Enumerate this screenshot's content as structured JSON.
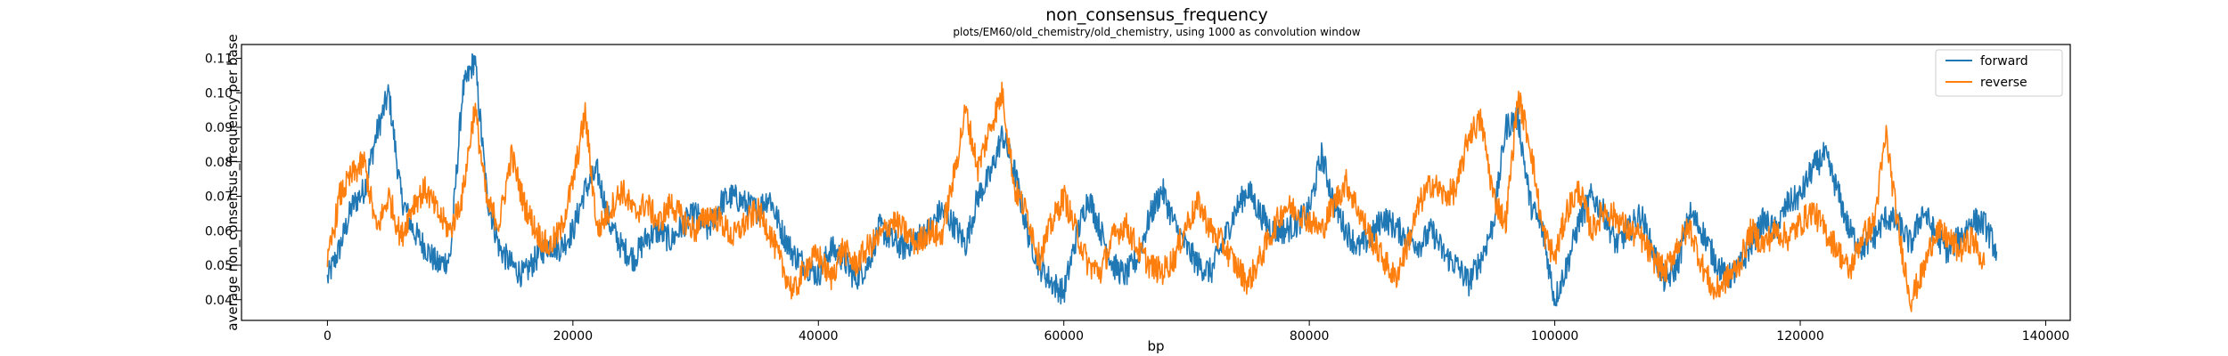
{
  "chart_data": {
    "type": "line",
    "title": "non_consensus_frequency",
    "subtitle": "plots/EM60/old_chemistry/old_chemistry, using 1000 as convolution window",
    "xlabel": "bp",
    "ylabel": "average non_consensus_frequency per base",
    "xlim": [
      -7000,
      142000
    ],
    "ylim": [
      0.034,
      0.114
    ],
    "xticks": [
      0,
      20000,
      40000,
      60000,
      80000,
      100000,
      120000,
      140000
    ],
    "yticks": [
      0.04,
      0.05,
      0.06,
      0.07,
      0.08,
      0.09,
      0.1,
      0.11
    ],
    "xtick_labels": [
      "0",
      "20000",
      "40000",
      "60000",
      "80000",
      "100000",
      "120000",
      "140000"
    ],
    "ytick_labels": [
      "0.04",
      "0.05",
      "0.06",
      "0.07",
      "0.08",
      "0.09",
      "0.10",
      "0.11"
    ],
    "grid": false,
    "legend_position": "top-right",
    "series": [
      {
        "name": "forward",
        "color": "#1f77b4",
        "x": [
          0,
          1000,
          2000,
          3000,
          4000,
          5000,
          6000,
          7000,
          8000,
          9000,
          10000,
          11000,
          12000,
          13000,
          14000,
          15000,
          16000,
          17000,
          18000,
          19000,
          20000,
          21000,
          22000,
          23000,
          24000,
          25000,
          26000,
          27000,
          28000,
          29000,
          30000,
          31000,
          32000,
          33000,
          34000,
          35000,
          36000,
          37000,
          38000,
          39000,
          40000,
          41000,
          42000,
          43000,
          44000,
          45000,
          46000,
          47000,
          48000,
          49000,
          50000,
          51000,
          52000,
          53000,
          54000,
          55000,
          56000,
          57000,
          58000,
          59000,
          60000,
          61000,
          62000,
          63000,
          64000,
          65000,
          66000,
          67000,
          68000,
          69000,
          70000,
          71000,
          72000,
          73000,
          74000,
          75000,
          76000,
          77000,
          78000,
          79000,
          80000,
          81000,
          82000,
          83000,
          84000,
          85000,
          86000,
          87000,
          88000,
          89000,
          90000,
          91000,
          92000,
          93000,
          94000,
          95000,
          96000,
          97000,
          98000,
          99000,
          100000,
          101000,
          102000,
          103000,
          104000,
          105000,
          106000,
          107000,
          108000,
          109000,
          110000,
          111000,
          112000,
          113000,
          114000,
          115000,
          116000,
          117000,
          118000,
          119000,
          120000,
          121000,
          122000,
          123000,
          124000,
          125000,
          126000,
          127000,
          128000,
          129000,
          130000,
          131000,
          132000,
          133000,
          134000,
          135000,
          136000
        ],
        "values": [
          0.046,
          0.055,
          0.067,
          0.072,
          0.088,
          0.1,
          0.07,
          0.06,
          0.055,
          0.05,
          0.052,
          0.1,
          0.11,
          0.07,
          0.055,
          0.05,
          0.047,
          0.052,
          0.056,
          0.055,
          0.06,
          0.072,
          0.077,
          0.062,
          0.055,
          0.052,
          0.058,
          0.06,
          0.057,
          0.062,
          0.065,
          0.06,
          0.068,
          0.07,
          0.068,
          0.066,
          0.07,
          0.06,
          0.053,
          0.05,
          0.047,
          0.055,
          0.052,
          0.046,
          0.05,
          0.061,
          0.057,
          0.055,
          0.058,
          0.06,
          0.066,
          0.062,
          0.056,
          0.07,
          0.076,
          0.088,
          0.077,
          0.06,
          0.05,
          0.045,
          0.042,
          0.058,
          0.07,
          0.06,
          0.05,
          0.047,
          0.052,
          0.064,
          0.072,
          0.062,
          0.055,
          0.05,
          0.048,
          0.057,
          0.066,
          0.072,
          0.065,
          0.06,
          0.06,
          0.062,
          0.066,
          0.082,
          0.068,
          0.06,
          0.055,
          0.058,
          0.064,
          0.061,
          0.058,
          0.056,
          0.06,
          0.053,
          0.05,
          0.045,
          0.052,
          0.062,
          0.09,
          0.093,
          0.068,
          0.06,
          0.04,
          0.05,
          0.063,
          0.07,
          0.065,
          0.056,
          0.06,
          0.065,
          0.054,
          0.045,
          0.05,
          0.065,
          0.06,
          0.052,
          0.046,
          0.049,
          0.056,
          0.063,
          0.06,
          0.068,
          0.07,
          0.078,
          0.082,
          0.072,
          0.06,
          0.055,
          0.058,
          0.064,
          0.062,
          0.056,
          0.066,
          0.059,
          0.054,
          0.058,
          0.063,
          0.062,
          0.054
        ]
      },
      {
        "name": "reverse",
        "color": "#ff7f0e",
        "x": [
          0,
          1000,
          2000,
          3000,
          4000,
          5000,
          6000,
          7000,
          8000,
          9000,
          10000,
          11000,
          12000,
          13000,
          14000,
          15000,
          16000,
          17000,
          18000,
          19000,
          20000,
          21000,
          22000,
          23000,
          24000,
          25000,
          26000,
          27000,
          28000,
          29000,
          30000,
          31000,
          32000,
          33000,
          34000,
          35000,
          36000,
          37000,
          38000,
          39000,
          40000,
          41000,
          42000,
          43000,
          44000,
          45000,
          46000,
          47000,
          48000,
          49000,
          50000,
          51000,
          52000,
          53000,
          54000,
          55000,
          56000,
          57000,
          58000,
          59000,
          60000,
          61000,
          62000,
          63000,
          64000,
          65000,
          66000,
          67000,
          68000,
          69000,
          70000,
          71000,
          72000,
          73000,
          74000,
          75000,
          76000,
          77000,
          78000,
          79000,
          80000,
          81000,
          82000,
          83000,
          84000,
          85000,
          86000,
          87000,
          88000,
          89000,
          90000,
          91000,
          92000,
          93000,
          94000,
          95000,
          96000,
          97000,
          98000,
          99000,
          100000,
          101000,
          102000,
          103000,
          104000,
          105000,
          106000,
          107000,
          108000,
          109000,
          110000,
          111000,
          112000,
          113000,
          114000,
          115000,
          116000,
          117000,
          118000,
          119000,
          120000,
          121000,
          122000,
          123000,
          124000,
          125000,
          126000,
          127000,
          128000,
          129000,
          130000,
          131000,
          132000,
          133000,
          134000,
          135000
        ],
        "values": [
          0.05,
          0.07,
          0.076,
          0.08,
          0.06,
          0.07,
          0.058,
          0.068,
          0.072,
          0.065,
          0.06,
          0.07,
          0.096,
          0.068,
          0.062,
          0.082,
          0.068,
          0.06,
          0.055,
          0.06,
          0.074,
          0.094,
          0.06,
          0.066,
          0.072,
          0.065,
          0.068,
          0.062,
          0.068,
          0.063,
          0.06,
          0.065,
          0.063,
          0.058,
          0.062,
          0.066,
          0.06,
          0.05,
          0.042,
          0.05,
          0.053,
          0.046,
          0.055,
          0.05,
          0.055,
          0.058,
          0.063,
          0.06,
          0.056,
          0.06,
          0.058,
          0.075,
          0.095,
          0.078,
          0.09,
          0.1,
          0.072,
          0.065,
          0.052,
          0.062,
          0.07,
          0.06,
          0.05,
          0.048,
          0.058,
          0.062,
          0.055,
          0.05,
          0.048,
          0.052,
          0.062,
          0.068,
          0.06,
          0.056,
          0.05,
          0.045,
          0.052,
          0.06,
          0.067,
          0.066,
          0.063,
          0.06,
          0.068,
          0.074,
          0.066,
          0.058,
          0.052,
          0.046,
          0.056,
          0.068,
          0.074,
          0.07,
          0.072,
          0.088,
          0.092,
          0.07,
          0.062,
          0.099,
          0.085,
          0.06,
          0.052,
          0.066,
          0.072,
          0.06,
          0.066,
          0.064,
          0.06,
          0.058,
          0.052,
          0.048,
          0.056,
          0.061,
          0.05,
          0.042,
          0.046,
          0.05,
          0.06,
          0.056,
          0.06,
          0.058,
          0.062,
          0.066,
          0.06,
          0.055,
          0.048,
          0.058,
          0.062,
          0.088,
          0.06,
          0.04,
          0.048,
          0.06,
          0.058,
          0.054,
          0.058,
          0.05
        ]
      }
    ]
  }
}
